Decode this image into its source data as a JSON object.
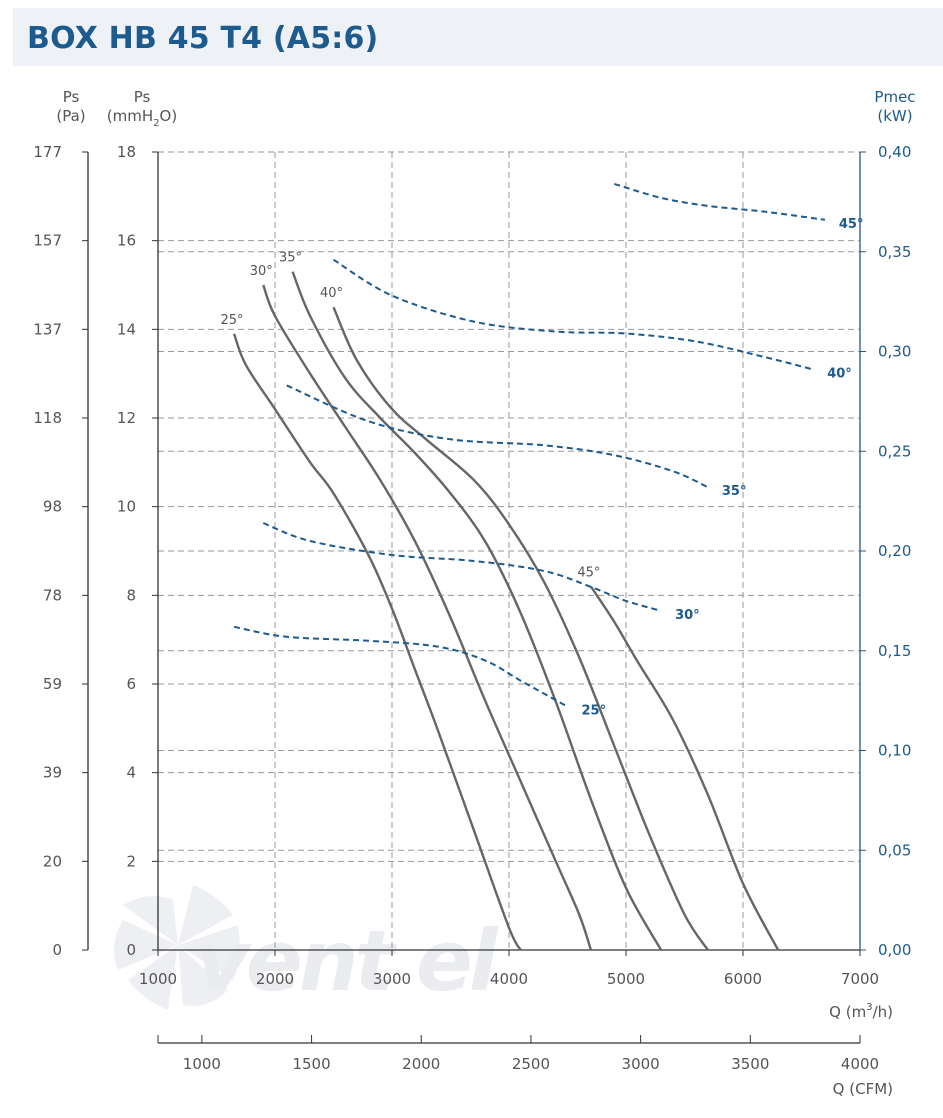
{
  "title": "BOX HB 45 T4 (A5:6)",
  "axes": {
    "left_pa_label": "Ps",
    "left_pa_unit": "(Pa)",
    "left_mm_label": "Ps",
    "left_mm_unit_pre": "(mmH",
    "left_mm_unit_sub": "2",
    "left_mm_unit_post": "O)",
    "right_label": "Pmec",
    "right_unit": "(kW)",
    "x_label_pre": "Q (m",
    "x_label_sup": "3",
    "x_label_post": "/h)",
    "cfm_label": "Q (CFM)",
    "pa_ticks": [
      "177",
      "157",
      "137",
      "118",
      "98",
      "78",
      "59",
      "39",
      "20",
      "0"
    ],
    "mm_ticks": [
      "18",
      "16",
      "14",
      "12",
      "10",
      "8",
      "6",
      "4",
      "2",
      "0"
    ],
    "kw_ticks": [
      "0,40",
      "0,35",
      "0,30",
      "0,25",
      "0,20",
      "0,15",
      "0,10",
      "0,05",
      "0,00"
    ],
    "x_ticks": [
      "1000",
      "2000",
      "3000",
      "4000",
      "5000",
      "6000",
      "7000"
    ],
    "cfm_ticks": [
      "1000",
      "1500",
      "2000",
      "2500",
      "3000",
      "3500",
      "4000"
    ]
  },
  "watermark": "vent el",
  "colors": {
    "title": "#1d5a8e",
    "pressure_curve": "#666666",
    "power_curve": "#1d5a8e",
    "grid": "#9a9a9a",
    "right_axis": "#1d5a8e"
  },
  "chart_data": {
    "type": "line",
    "title": "BOX HB 45 T4 (A5:6)",
    "xlabel": "Q (m3/h)",
    "secondary_xlabel": "Q (CFM)",
    "ylabel": "Ps (mmH2O)",
    "secondary_ylabel_left": "Ps (Pa)",
    "ylabel_right": "Pmec (kW)",
    "xlim": [
      1000,
      7000
    ],
    "ylim": [
      0,
      18
    ],
    "ylim_right": [
      0,
      0.4
    ],
    "grid": true,
    "series": [
      {
        "name": "25°",
        "kind": "pressure",
        "points": [
          [
            1650,
            13.9
          ],
          [
            1750,
            13.2
          ],
          [
            2000,
            12.2
          ],
          [
            2300,
            11.0
          ],
          [
            2500,
            10.3
          ],
          [
            2800,
            8.9
          ],
          [
            3000,
            7.7
          ],
          [
            3200,
            6.3
          ],
          [
            3400,
            4.9
          ],
          [
            3700,
            2.7
          ],
          [
            4000,
            0.5
          ],
          [
            4100,
            0
          ]
        ]
      },
      {
        "name": "30°",
        "kind": "pressure",
        "points": [
          [
            1900,
            15.0
          ],
          [
            2000,
            14.3
          ],
          [
            2300,
            13.0
          ],
          [
            2600,
            11.8
          ],
          [
            2900,
            10.6
          ],
          [
            3200,
            9.2
          ],
          [
            3500,
            7.5
          ],
          [
            3800,
            5.6
          ],
          [
            4100,
            3.8
          ],
          [
            4400,
            2.0
          ],
          [
            4600,
            0.8
          ],
          [
            4700,
            0
          ]
        ]
      },
      {
        "name": "35°",
        "kind": "pressure",
        "points": [
          [
            2150,
            15.3
          ],
          [
            2300,
            14.3
          ],
          [
            2600,
            12.9
          ],
          [
            2900,
            12.0
          ],
          [
            3200,
            11.2
          ],
          [
            3500,
            10.3
          ],
          [
            3800,
            9.2
          ],
          [
            4100,
            7.6
          ],
          [
            4400,
            5.6
          ],
          [
            4700,
            3.4
          ],
          [
            5000,
            1.4
          ],
          [
            5300,
            0
          ]
        ]
      },
      {
        "name": "40°",
        "kind": "pressure",
        "points": [
          [
            2500,
            14.5
          ],
          [
            2700,
            13.3
          ],
          [
            3000,
            12.2
          ],
          [
            3300,
            11.5
          ],
          [
            3700,
            10.6
          ],
          [
            4000,
            9.6
          ],
          [
            4300,
            8.3
          ],
          [
            4600,
            6.6
          ],
          [
            4900,
            4.6
          ],
          [
            5200,
            2.6
          ],
          [
            5500,
            0.8
          ],
          [
            5700,
            0
          ]
        ]
      },
      {
        "name": "45°",
        "kind": "pressure",
        "points": [
          [
            4700,
            8.2
          ],
          [
            4900,
            7.4
          ],
          [
            5100,
            6.5
          ],
          [
            5400,
            5.2
          ],
          [
            5700,
            3.5
          ],
          [
            6000,
            1.5
          ],
          [
            6300,
            0
          ]
        ]
      },
      {
        "name": "25°",
        "kind": "power",
        "points": [
          [
            1650,
            0.162
          ],
          [
            2100,
            0.157
          ],
          [
            2800,
            0.155
          ],
          [
            3400,
            0.152
          ],
          [
            3800,
            0.145
          ],
          [
            4100,
            0.135
          ],
          [
            4500,
            0.122
          ]
        ]
      },
      {
        "name": "30°",
        "kind": "power",
        "points": [
          [
            1900,
            0.214
          ],
          [
            2300,
            0.205
          ],
          [
            3000,
            0.198
          ],
          [
            3700,
            0.195
          ],
          [
            4300,
            0.19
          ],
          [
            4700,
            0.182
          ],
          [
            5000,
            0.175
          ],
          [
            5300,
            0.17
          ]
        ]
      },
      {
        "name": "35°",
        "kind": "power",
        "points": [
          [
            2100,
            0.283
          ],
          [
            2800,
            0.265
          ],
          [
            3500,
            0.256
          ],
          [
            4300,
            0.253
          ],
          [
            4900,
            0.248
          ],
          [
            5400,
            0.24
          ],
          [
            5700,
            0.232
          ]
        ]
      },
      {
        "name": "40°",
        "kind": "power",
        "points": [
          [
            2500,
            0.346
          ],
          [
            3000,
            0.328
          ],
          [
            3700,
            0.315
          ],
          [
            4400,
            0.31
          ],
          [
            5000,
            0.309
          ],
          [
            5600,
            0.305
          ],
          [
            6200,
            0.297
          ],
          [
            6600,
            0.291
          ]
        ]
      },
      {
        "name": "45°",
        "kind": "power",
        "points": [
          [
            4900,
            0.384
          ],
          [
            5300,
            0.377
          ],
          [
            5700,
            0.373
          ],
          [
            6200,
            0.37
          ],
          [
            6700,
            0.366
          ]
        ]
      }
    ]
  }
}
